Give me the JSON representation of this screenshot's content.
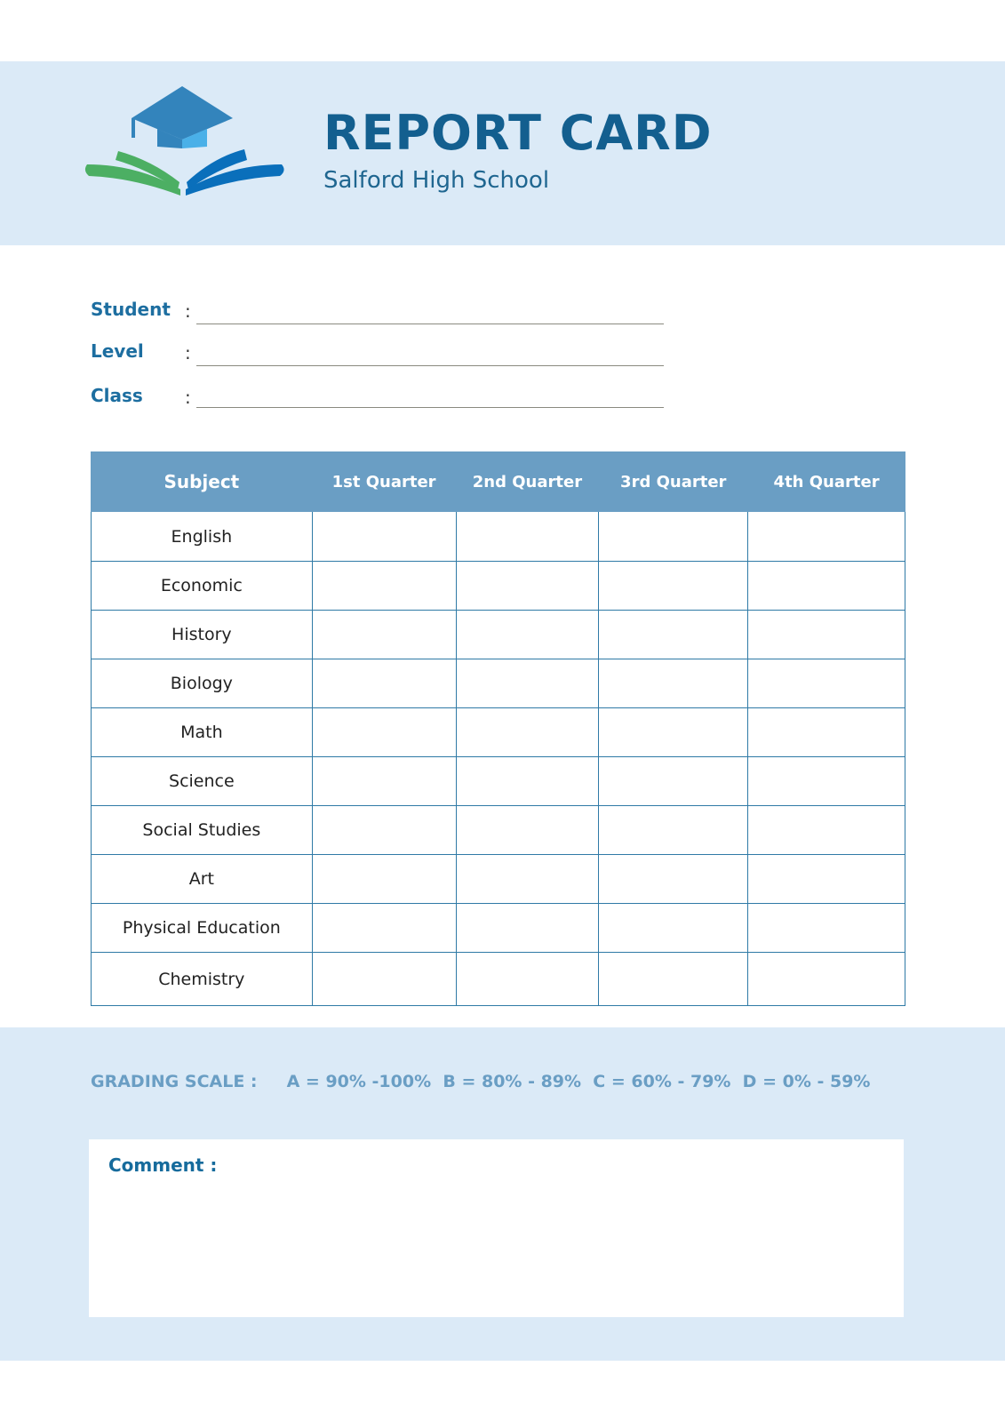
{
  "header": {
    "title": "REPORT CARD",
    "school": "Salford High School",
    "logo_icon": "graduation-cap-book-icon"
  },
  "fields": [
    {
      "label": "Student",
      "colon": ":",
      "value": ""
    },
    {
      "label": "Level",
      "colon": ":",
      "value": ""
    },
    {
      "label": "Class",
      "colon": ":",
      "value": ""
    }
  ],
  "table": {
    "headers": [
      "Subject",
      "1st Quarter",
      "2nd Quarter",
      "3rd Quarter",
      "4th Quarter"
    ],
    "subjects": [
      "English",
      "Economic",
      "History",
      "Biology",
      "Math",
      "Science",
      "Social Studies",
      "Art",
      "Physical Education",
      "Chemistry"
    ]
  },
  "grading": {
    "label": "GRADING SCALE :",
    "scale": "A = 90% -100%  B = 80% - 89%  C = 60% - 79%  D = 0% - 59%"
  },
  "comment": {
    "label": "Comment :"
  },
  "colors": {
    "title": "#135f8f",
    "header_band": "#dbeaf7",
    "table_header": "#6a9ec4",
    "table_border": "#2f7aa6",
    "green": "#4caf63",
    "blue": "#0a6fbb"
  }
}
